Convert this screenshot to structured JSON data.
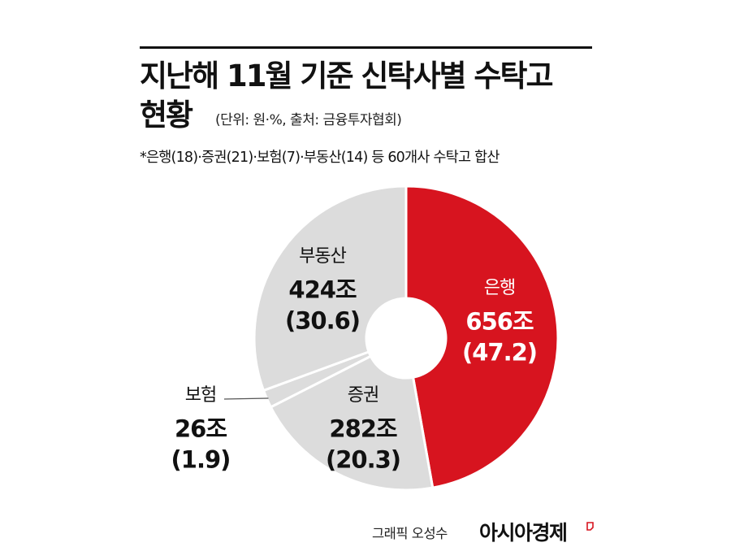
{
  "title_line1": "지난해 11월 기준 신탁사별 수탁고",
  "title_line2": "현황",
  "unit_source": "(단위: 원·%, 출처: 금융투자협회)",
  "note": "*은행(18)·증권(21)·보험(7)·부동산(14) 등 60개사 수탁고 합산",
  "credit": "그래픽 오성수",
  "brand": "아시아경제",
  "colors": {
    "highlight": "#d7141f",
    "others": "#dcdcdc",
    "text_light": "#ffffff",
    "text_dark": "#111111"
  },
  "chart_data": {
    "type": "pie",
    "style": "donut",
    "unit": "조",
    "slices": [
      {
        "label": "은행",
        "value": 656,
        "value_text": "656조",
        "percent": 47.2,
        "percent_text": "(47.2)",
        "color": "#d7141f"
      },
      {
        "label": "증권",
        "value": 282,
        "value_text": "282조",
        "percent": 20.3,
        "percent_text": "(20.3)",
        "color": "#dcdcdc"
      },
      {
        "label": "보험",
        "value": 26,
        "value_text": "26조",
        "percent": 1.9,
        "percent_text": "(1.9)",
        "color": "#dcdcdc"
      },
      {
        "label": "부동산",
        "value": 424,
        "value_text": "424조",
        "percent": 30.6,
        "percent_text": "(30.6)",
        "color": "#dcdcdc"
      }
    ]
  }
}
